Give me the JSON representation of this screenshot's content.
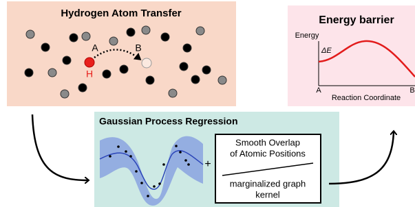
{
  "hat_panel": {
    "title": "Hydrogen Atom Transfer",
    "label_a": "A",
    "label_b": "B",
    "label_h": "H"
  },
  "energy_panel": {
    "title": "Energy barrier",
    "y_label": "Energy",
    "delta": "ΔE",
    "label_a": "A",
    "label_b": "B",
    "x_label": "Reaction Coordinate"
  },
  "gpr_panel": {
    "title": "Gaussian Process Regression",
    "plus": "+",
    "soap_lines": [
      "Smooth Overlap",
      "of Atomic Positions"
    ],
    "kernel_lines": [
      "marginalized graph",
      "kernel"
    ]
  }
}
